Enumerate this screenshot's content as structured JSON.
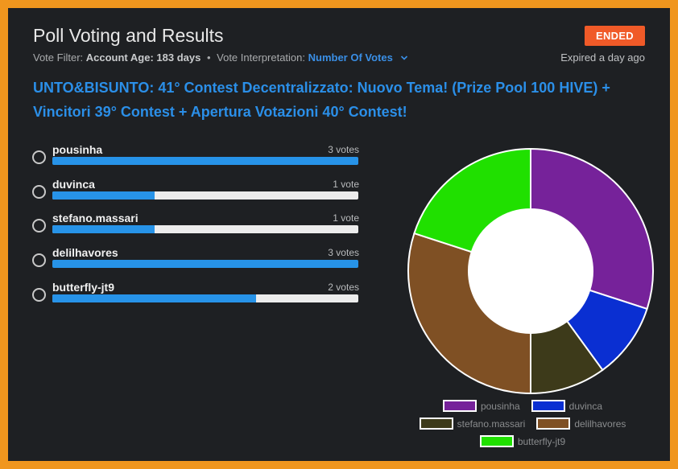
{
  "header": {
    "title": "Poll Voting and Results",
    "status_badge": "ENDED",
    "filter_prefix": "Vote Filter:",
    "filter_value": "Account Age: 183 days",
    "separator": "•",
    "interp_label": "Vote Interpretation:",
    "interp_value": "Number Of Votes",
    "expired": "Expired a day ago"
  },
  "question": "UNTO&BISUNTO: 41° Contest Decentralizzato: Nuovo Tema! (Prize Pool 100 HIVE) + Vincitori 39° Contest + Apertura Votazioni 40° Contest!",
  "options": [
    {
      "name": "pousinha",
      "votes_label": "3 votes",
      "votes": 3
    },
    {
      "name": "duvinca",
      "votes_label": "1 vote",
      "votes": 1
    },
    {
      "name": "stefano.massari",
      "votes_label": "1 vote",
      "votes": 1
    },
    {
      "name": "delilhavores",
      "votes_label": "3 votes",
      "votes": 3
    },
    {
      "name": "butterfly-jt9",
      "votes_label": "2 votes",
      "votes": 2
    }
  ],
  "colors": {
    "accent": "#2b8fe8",
    "badge": "#f05a28",
    "background": "#1e2023",
    "frame": "#f0961e"
  },
  "chart_data": {
    "type": "pie",
    "style": "doughnut",
    "categories": [
      "pousinha",
      "duvinca",
      "stefano.massari",
      "delilhavores",
      "butterfly-jt9"
    ],
    "values": [
      3,
      1,
      1,
      3,
      2
    ],
    "colors": [
      "#76229a",
      "#0a2fd2",
      "#3d3a1a",
      "#7f5024",
      "#20e000"
    ],
    "legend_position": "bottom"
  }
}
